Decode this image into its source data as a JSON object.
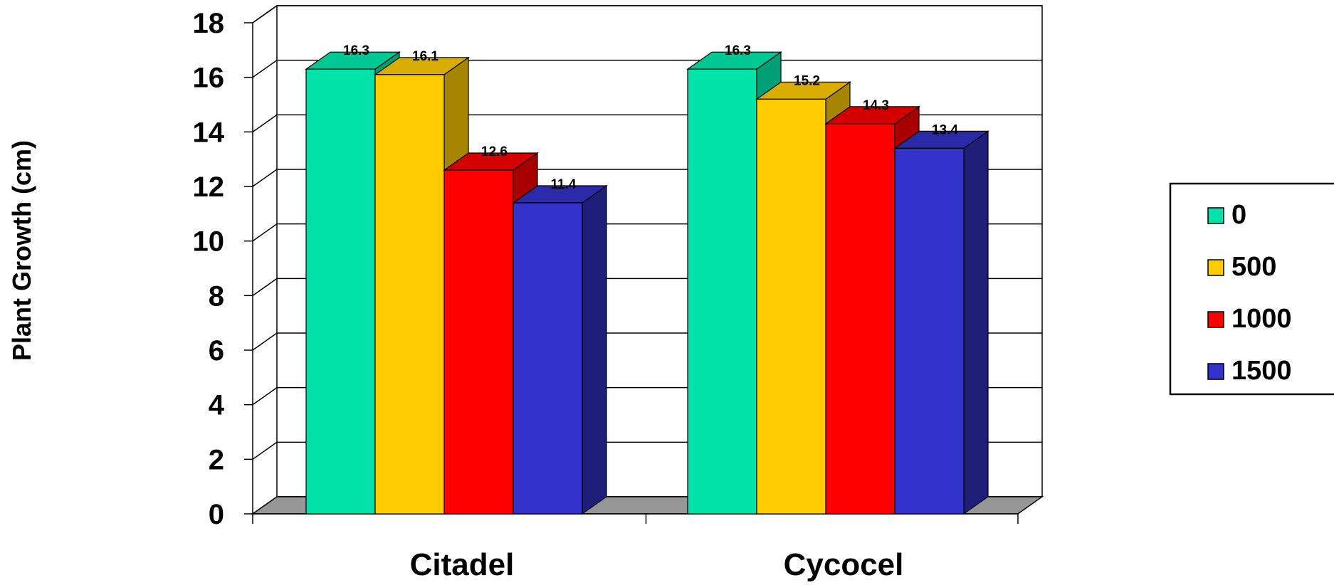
{
  "chart_data": {
    "type": "bar",
    "title": "",
    "xlabel": "",
    "ylabel": "Plant Growth (cm)",
    "ylim": [
      0,
      18
    ],
    "yticks": [
      "0",
      "2",
      "4",
      "6",
      "8",
      "10",
      "12",
      "14",
      "16",
      "18"
    ],
    "categories": [
      "Citadel",
      "Cycocel"
    ],
    "series": [
      {
        "name": "0",
        "values": [
          16.3,
          16.3
        ],
        "labels": [
          "16.3",
          "16.3"
        ],
        "color": "#00E3A8",
        "side": "#009F76",
        "top": "#00C892"
      },
      {
        "name": "500",
        "values": [
          16.1,
          15.2
        ],
        "labels": [
          "16.1",
          "15.2"
        ],
        "color": "#FFCC00",
        "side": "#A68600",
        "top": "#D9AD00"
      },
      {
        "name": "1000",
        "values": [
          12.6,
          14.3
        ],
        "labels": [
          "12.6",
          "14.3"
        ],
        "color": "#FF0000",
        "side": "#A80000",
        "top": "#D40000"
      },
      {
        "name": "1500",
        "values": [
          11.4,
          13.4
        ],
        "labels": [
          "11.4",
          "13.4"
        ],
        "color": "#3333CC",
        "side": "#1F1F7A",
        "top": "#2A2AA8"
      }
    ],
    "grid": true,
    "legend": "right",
    "style": "3d-clustered-column"
  }
}
